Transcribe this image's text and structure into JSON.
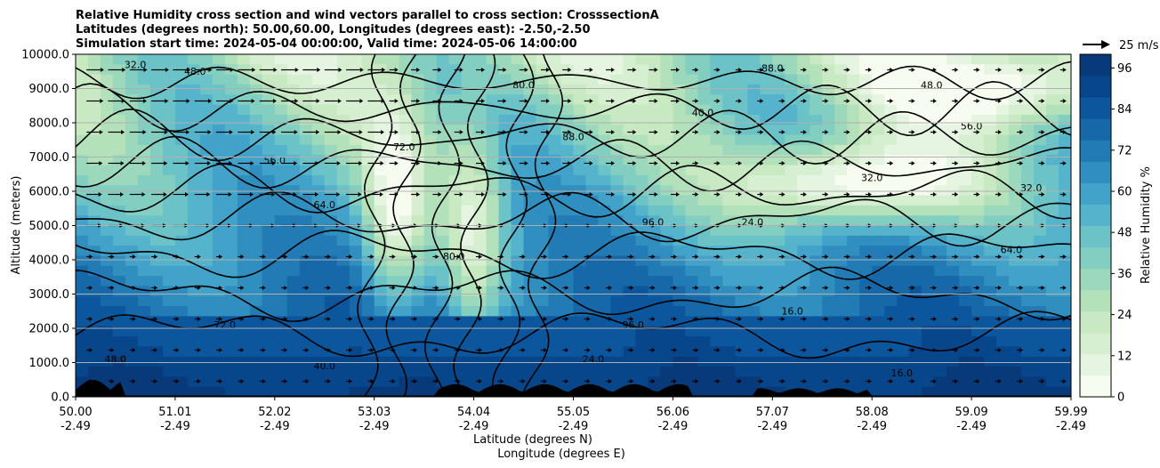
{
  "chart_data": {
    "type": "heatmap",
    "title_lines": [
      "Relative Humidity cross section and wind vectors parallel to cross section: CrosssectionA",
      "Latitudes (degrees north): 50.00,60.00, Longitudes (degrees east): -2.50,-2.50",
      "Simulation start time: 2024-05-04 00:00:00, Valid time: 2024-05-06 14:00:00"
    ],
    "xlabel": "Latitude (degrees N)",
    "xlabel2": "Longitude (degrees E)",
    "ylabel": "Altitude (meters)",
    "x_ticks": [
      {
        "lat": "50.00",
        "lon": "-2.49"
      },
      {
        "lat": "51.01",
        "lon": "-2.49"
      },
      {
        "lat": "52.02",
        "lon": "-2.49"
      },
      {
        "lat": "53.03",
        "lon": "-2.49"
      },
      {
        "lat": "54.04",
        "lon": "-2.49"
      },
      {
        "lat": "55.05",
        "lon": "-2.49"
      },
      {
        "lat": "56.06",
        "lon": "-2.49"
      },
      {
        "lat": "57.07",
        "lon": "-2.49"
      },
      {
        "lat": "58.08",
        "lon": "-2.49"
      },
      {
        "lat": "59.09",
        "lon": "-2.49"
      },
      {
        "lat": "59.99",
        "lon": "-2.49"
      }
    ],
    "y_ticks": [
      "0.0",
      "1000.0",
      "2000.0",
      "3000.0",
      "4000.0",
      "5000.0",
      "6000.0",
      "7000.0",
      "8000.0",
      "9000.0",
      "10000.0"
    ],
    "ylim": [
      0,
      10000
    ],
    "grid": "horizontal",
    "colorbar": {
      "label": "Relative Humidity %",
      "ticks": [
        "0",
        "12",
        "24",
        "36",
        "48",
        "60",
        "72",
        "84",
        "96"
      ],
      "range": [
        0,
        100
      ],
      "step": 4,
      "colors": [
        "#f7fcf0",
        "#e6f5e1",
        "#d7efd1",
        "#c8e9c2",
        "#b3e1ba",
        "#9bd8bc",
        "#82cec1",
        "#6bc3c7",
        "#55b4cb",
        "#42a2ca",
        "#308fbf",
        "#227bb4",
        "#1768a9",
        "#0c569e",
        "#08468c",
        "#083a7a"
      ]
    },
    "wind_key": {
      "label": "25 m/s"
    },
    "contour_labels": [
      "32.0",
      "48.0",
      "56.0",
      "64.0",
      "72.0",
      "80.0",
      "88.0",
      "96.0",
      "40.0",
      "24.0",
      "16.0"
    ]
  }
}
